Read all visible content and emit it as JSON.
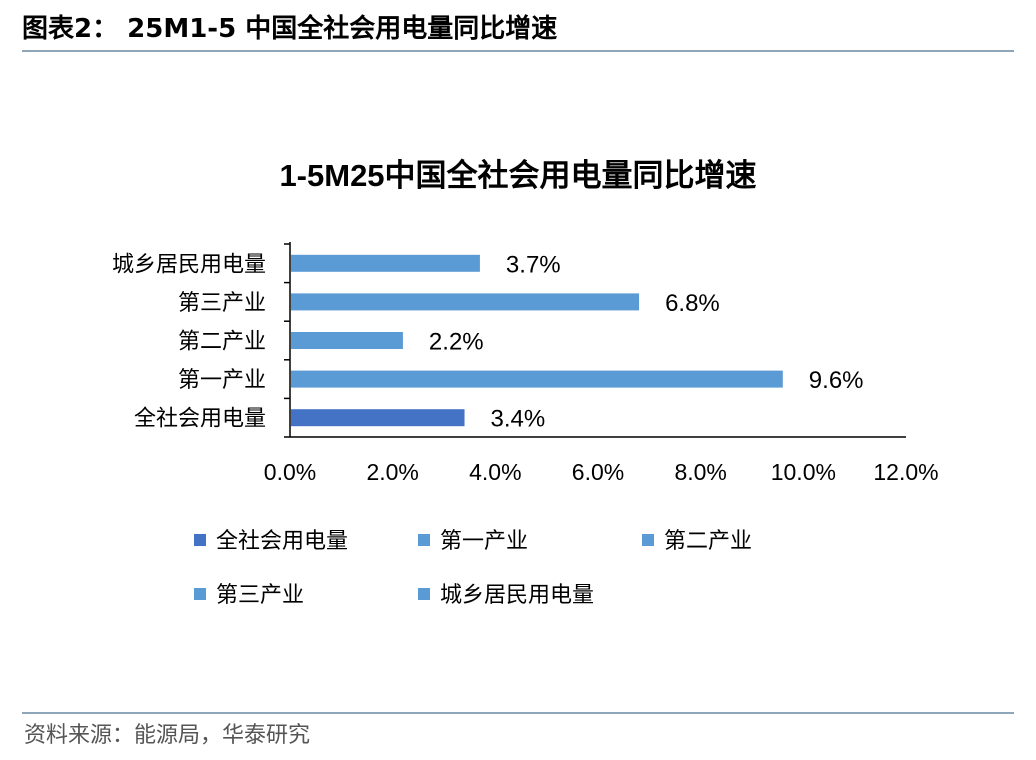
{
  "header": {
    "title": "图表2： 25M1-5 中国全社会用电量同比增速"
  },
  "footer": {
    "source": "资料来源：能源局，华泰研究"
  },
  "chart_data": {
    "type": "bar",
    "orientation": "horizontal",
    "title": "1-5M25中国全社会用电量同比增速",
    "xlabel": "",
    "ylabel": "",
    "xlim": [
      0,
      12
    ],
    "x_ticks": [
      "0.0%",
      "2.0%",
      "4.0%",
      "6.0%",
      "8.0%",
      "10.0%",
      "12.0%"
    ],
    "categories": [
      "城乡居民用电量",
      "第三产业",
      "第二产业",
      "第一产业",
      "全社会用电量"
    ],
    "values": [
      3.7,
      6.8,
      2.2,
      9.6,
      3.4
    ],
    "data_labels": [
      "3.7%",
      "6.8%",
      "2.2%",
      "9.6%",
      "3.4%"
    ],
    "bar_colors": [
      "#5b9bd5",
      "#5b9bd5",
      "#5b9bd5",
      "#5b9bd5",
      "#4472c4"
    ],
    "legend": {
      "placement": "bottom",
      "items": [
        {
          "name": "全社会用电量",
          "color": "#4472c4"
        },
        {
          "name": "第一产业",
          "color": "#5b9bd5"
        },
        {
          "name": "第二产业",
          "color": "#5b9bd5"
        },
        {
          "name": "第三产业",
          "color": "#5b9bd5"
        },
        {
          "name": "城乡居民用电量",
          "color": "#5b9bd5"
        }
      ]
    },
    "grid": false
  }
}
